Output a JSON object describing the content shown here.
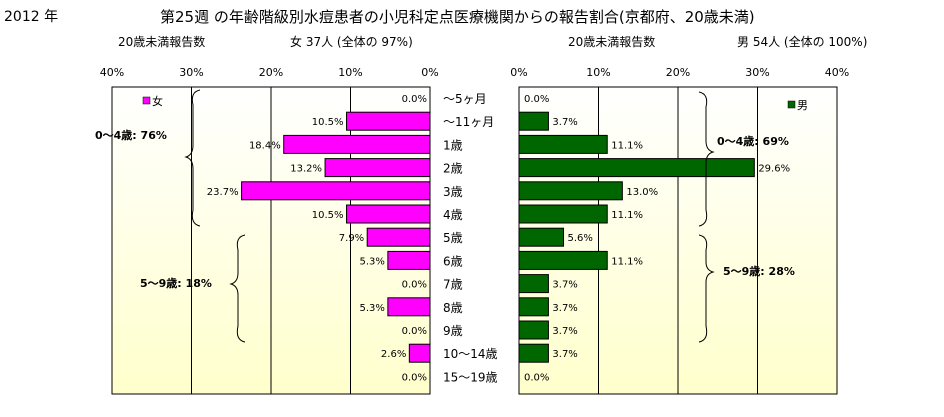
{
  "header": {
    "year": "2012 年",
    "title": "第25週 の年齢階級別水痘患者の小児科定点医療機関からの報告割合(京都府、20歳未満)"
  },
  "left_panel": {
    "count_label": "20歳未満報告数",
    "total_label": "女  37人 (全体の  97%)",
    "legend_label": "女",
    "brace_0_4": "0～4歳: 76%",
    "brace_5_9": "5～9歳: 18%"
  },
  "right_panel": {
    "count_label": "20歳未満報告数",
    "total_label": "男  54人 (全体の  100%)",
    "legend_label": "男",
    "brace_0_4": "0～4歳: 69%",
    "brace_5_9": "5～9歳: 28%"
  },
  "colors": {
    "female": "#ff00ff",
    "male": "#006600",
    "plot_bg_top": "#ffffff",
    "plot_bg_bottom": "#ffffcc"
  },
  "chart_data": [
    {
      "type": "bar",
      "orientation": "horizontal",
      "direction": "right-to-left",
      "categories": [
        "～5ヶ月",
        "～11ヶ月",
        "1歳",
        "2歳",
        "3歳",
        "4歳",
        "5歳",
        "6歳",
        "7歳",
        "8歳",
        "9歳",
        "10～14歳",
        "15～19歳"
      ],
      "series": [
        {
          "name": "女",
          "values": [
            0.0,
            10.5,
            18.4,
            13.2,
            23.7,
            10.5,
            7.9,
            5.3,
            0.0,
            5.3,
            0.0,
            2.6,
            0.0
          ],
          "labels": [
            "0.0%",
            "10.5%",
            "18.4%",
            "13.2%",
            "23.7%",
            "10.5%",
            "7.9%",
            "5.3%",
            "0.0%",
            "5.3%",
            "0.0%",
            "2.6%",
            "0.0%"
          ]
        }
      ],
      "xlim": [
        0,
        40
      ],
      "xticks": [
        "40%",
        "30%",
        "20%",
        "10%",
        "0%"
      ],
      "grid": true,
      "legend": "top-left"
    },
    {
      "type": "bar",
      "orientation": "horizontal",
      "direction": "left-to-right",
      "categories": [
        "～5ヶ月",
        "～11ヶ月",
        "1歳",
        "2歳",
        "3歳",
        "4歳",
        "5歳",
        "6歳",
        "7歳",
        "8歳",
        "9歳",
        "10～14歳",
        "15～19歳"
      ],
      "series": [
        {
          "name": "男",
          "values": [
            0.0,
            3.7,
            11.1,
            29.6,
            13.0,
            11.1,
            5.6,
            11.1,
            3.7,
            3.7,
            3.7,
            3.7,
            0.0
          ],
          "labels": [
            "0.0%",
            "3.7%",
            "11.1%",
            "29.6%",
            "13.0%",
            "11.1%",
            "5.6%",
            "11.1%",
            "3.7%",
            "3.7%",
            "3.7%",
            "3.7%",
            "0.0%"
          ]
        }
      ],
      "xlim": [
        0,
        40
      ],
      "xticks": [
        "0%",
        "10%",
        "20%",
        "30%",
        "40%"
      ],
      "grid": true,
      "legend": "top-right"
    }
  ]
}
